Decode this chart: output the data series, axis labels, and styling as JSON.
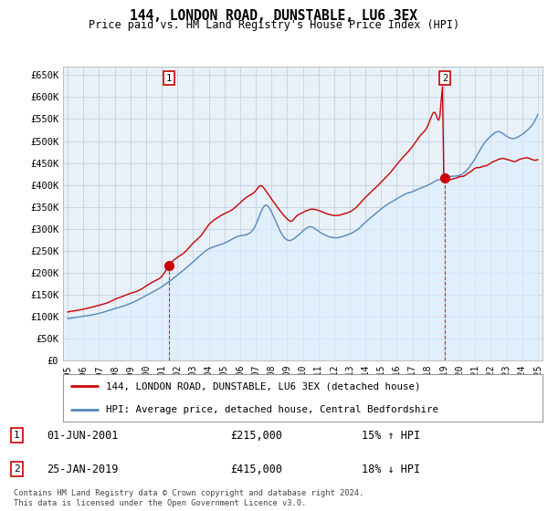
{
  "title": "144, LONDON ROAD, DUNSTABLE, LU6 3EX",
  "subtitle": "Price paid vs. HM Land Registry's House Price Index (HPI)",
  "ylabel_ticks": [
    "£0",
    "£50K",
    "£100K",
    "£150K",
    "£200K",
    "£250K",
    "£300K",
    "£350K",
    "£400K",
    "£450K",
    "£500K",
    "£550K",
    "£600K",
    "£650K"
  ],
  "ylim": [
    0,
    670000
  ],
  "ytick_vals": [
    0,
    50000,
    100000,
    150000,
    200000,
    250000,
    300000,
    350000,
    400000,
    450000,
    500000,
    550000,
    600000,
    650000
  ],
  "sale1_x": 2001.46,
  "sale1_price": 215000,
  "sale2_x": 2019.07,
  "sale2_price": 415000,
  "legend_line1": "144, LONDON ROAD, DUNSTABLE, LU6 3EX (detached house)",
  "legend_line2": "HPI: Average price, detached house, Central Bedfordshire",
  "footer": "Contains HM Land Registry data © Crown copyright and database right 2024.\nThis data is licensed under the Open Government Licence v3.0.",
  "color_red": "#cc0000",
  "color_blue": "#5588bb",
  "color_fill": "#ddeeff",
  "color_grid": "#bbccdd",
  "background_chart": "#e8f0f8",
  "background_fig": "#ffffff",
  "xmin": 1994.7,
  "xmax": 2025.3
}
